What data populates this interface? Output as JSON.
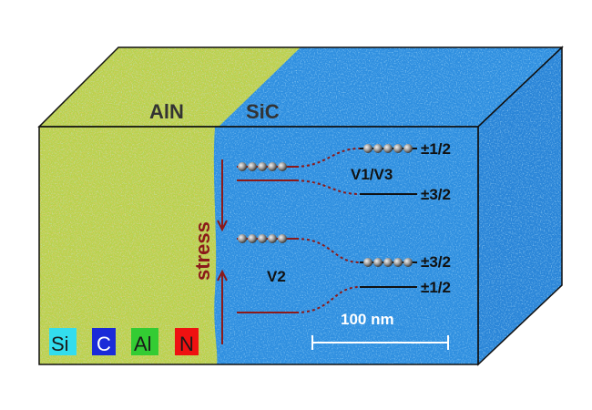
{
  "materials": {
    "aln_label": "AlN",
    "sic_label": "SiC"
  },
  "labels": {
    "stress": "stress",
    "v1v3": "V1/V3",
    "v2": "V2",
    "spin_top_1": "±1/2",
    "spin_top_2": "±3/2",
    "spin_bottom_1": "±3/2",
    "spin_bottom_2": "±1/2",
    "scale_bar": "100 nm"
  },
  "legend": [
    {
      "symbol": "Si",
      "color": "#33ddee",
      "text_color": "#1a1a1a"
    },
    {
      "symbol": "C",
      "color": "#1a2bd8",
      "text_color": "#ffffff"
    },
    {
      "symbol": "Al",
      "color": "#33cc33",
      "text_color": "#1a1a1a"
    },
    {
      "symbol": "N",
      "color": "#ee1111",
      "text_color": "#1a1a1a"
    }
  ],
  "colors": {
    "aln_region": "#b6d24a",
    "sic_region": "#2f8fe0",
    "level_line": "#8b1a1a",
    "stress_text": "#8b1a1a"
  }
}
